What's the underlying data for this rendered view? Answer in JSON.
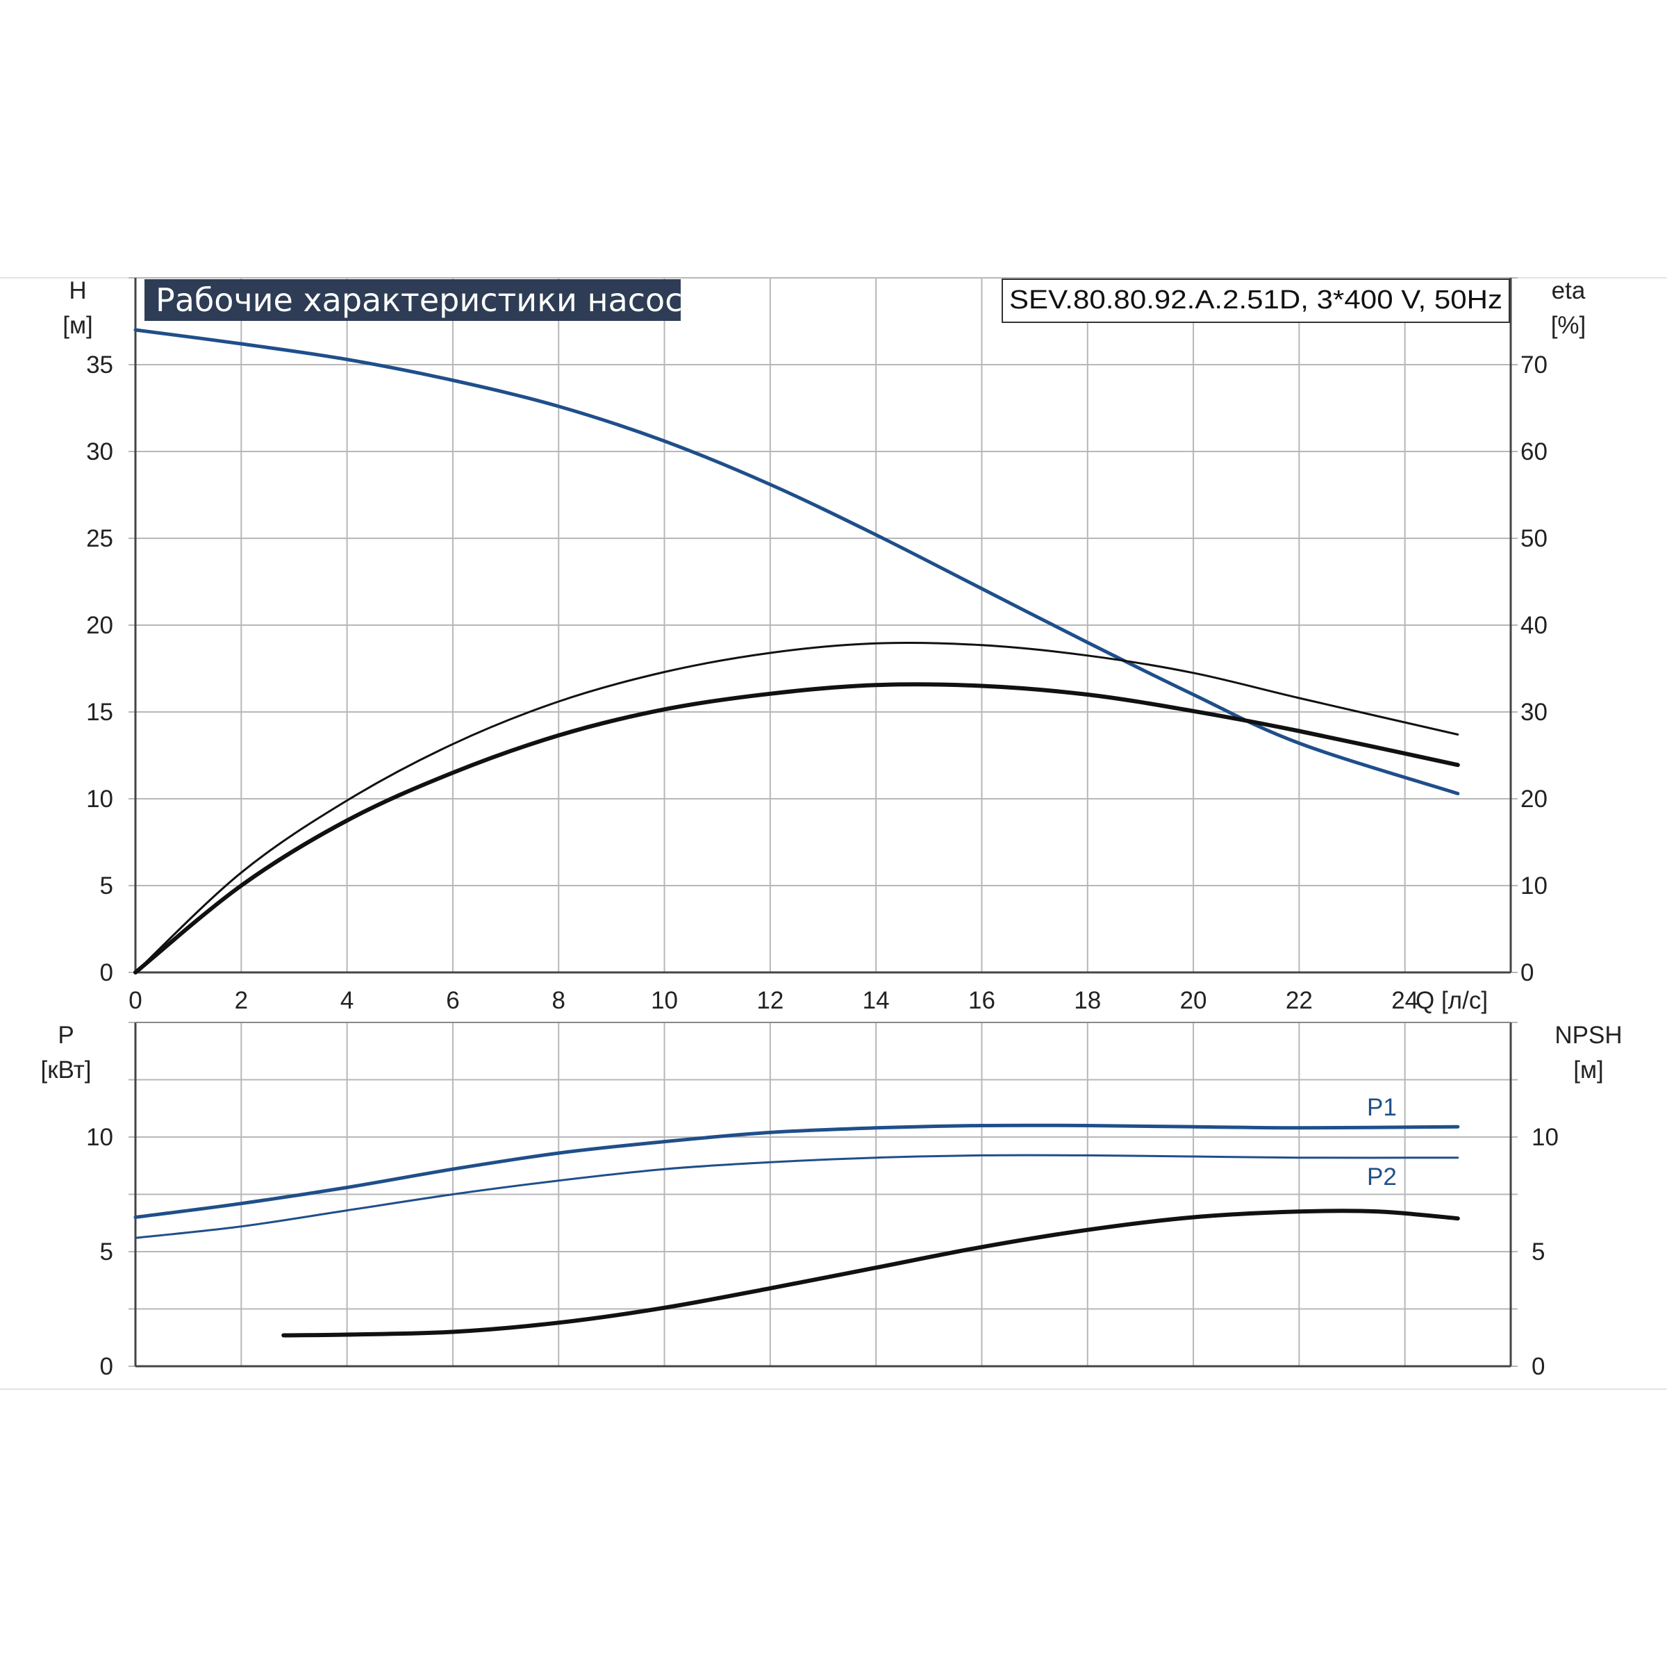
{
  "chart_data": [
    {
      "type": "line",
      "title": "Рабочие характеристики насоса",
      "model": "SEV.80.80.92.A.2.51D, 3*400 V, 50Hz",
      "left_axis": {
        "label": "H",
        "unit": "[м]",
        "ticks": [
          0,
          5,
          10,
          15,
          20,
          25,
          30,
          35
        ],
        "ylim": [
          0,
          40
        ]
      },
      "right_axis": {
        "label": "eta",
        "unit": "[%]",
        "ticks": [
          0,
          10,
          20,
          30,
          40,
          50,
          60,
          70
        ],
        "ylim": [
          0,
          80
        ]
      },
      "x_axis": {
        "label": "Q [л/с]",
        "ticks": [
          0,
          2,
          4,
          6,
          8,
          10,
          12,
          14,
          16,
          18,
          20,
          22,
          24
        ],
        "xlim": [
          0,
          26
        ]
      },
      "grid": true,
      "series": [
        {
          "axis": "left",
          "color": "#1f4f8a",
          "width": 5,
          "x": [
            0,
            2,
            4,
            6,
            8,
            10,
            12,
            14,
            16,
            18,
            20,
            22,
            25
          ],
          "y": [
            37,
            36.2,
            35.3,
            34.1,
            32.6,
            30.6,
            28.1,
            25.2,
            22.1,
            19.0,
            16.0,
            13.2,
            10.3
          ]
        },
        {
          "axis": "right",
          "color": "#111111",
          "width": 3,
          "x": [
            0,
            2,
            4,
            6,
            8,
            10,
            12,
            14,
            16,
            18,
            20,
            22,
            25
          ],
          "y": [
            0,
            11.5,
            19.8,
            26.3,
            31.2,
            34.6,
            36.8,
            37.9,
            37.7,
            36.5,
            34.5,
            31.6,
            27.4
          ]
        },
        {
          "axis": "right",
          "color": "#111111",
          "width": 6,
          "x": [
            0,
            2,
            4,
            6,
            8,
            10,
            12,
            14,
            16,
            18,
            20,
            22,
            25
          ],
          "y": [
            0,
            10.0,
            17.5,
            23.0,
            27.3,
            30.3,
            32.1,
            33.1,
            33.0,
            32.0,
            30.1,
            27.8,
            23.9
          ]
        }
      ]
    },
    {
      "type": "line",
      "left_axis": {
        "label": "P",
        "unit": "[кВт]",
        "ticks": [
          0,
          5,
          10
        ],
        "ylim": [
          0,
          15
        ]
      },
      "right_axis": {
        "label": "NPSH",
        "unit": "[м]",
        "ticks": [
          0,
          5,
          10
        ],
        "ylim": [
          0,
          15
        ]
      },
      "x_axis": {
        "xlim": [
          0,
          26
        ]
      },
      "grid": true,
      "series": [
        {
          "name": "P1",
          "axis": "left",
          "color": "#1f4f8a",
          "width": 5,
          "x": [
            0,
            2,
            4,
            6,
            8,
            10,
            12,
            14,
            16,
            18,
            20,
            22,
            25
          ],
          "y": [
            6.5,
            7.1,
            7.8,
            8.6,
            9.3,
            9.8,
            10.2,
            10.4,
            10.5,
            10.5,
            10.45,
            10.4,
            10.45
          ]
        },
        {
          "name": "P2",
          "axis": "left",
          "color": "#1f4f8a",
          "width": 3,
          "x": [
            0,
            2,
            4,
            6,
            8,
            10,
            12,
            14,
            16,
            18,
            20,
            22,
            25
          ],
          "y": [
            5.6,
            6.1,
            6.8,
            7.5,
            8.1,
            8.6,
            8.9,
            9.1,
            9.2,
            9.2,
            9.15,
            9.1,
            9.1
          ]
        },
        {
          "axis": "right",
          "color": "#111111",
          "width": 6,
          "x": [
            2.8,
            4,
            6,
            8,
            10,
            12,
            14,
            16,
            18,
            20,
            22,
            23.5,
            25
          ],
          "y": [
            1.35,
            1.38,
            1.5,
            1.9,
            2.55,
            3.4,
            4.3,
            5.2,
            5.95,
            6.5,
            6.75,
            6.75,
            6.45
          ]
        }
      ]
    }
  ]
}
